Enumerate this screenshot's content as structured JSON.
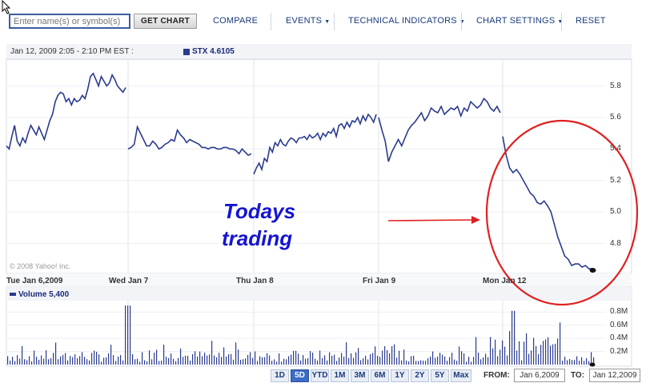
{
  "toolbar": {
    "search_placeholder": "Enter name(s) or symbol(s)",
    "get_chart": "GET CHART",
    "compare": "COMPARE",
    "events": "EVENTS",
    "technical_indicators": "TECHNICAL INDICATORS",
    "chart_settings": "CHART SETTINGS",
    "reset": "RESET"
  },
  "info": {
    "date_range": "Jan 12, 2009 2:05 - 2:10 PM EST :",
    "legend": "STX  4.6105"
  },
  "copyright": "© 2008 Yahoo! Inc.",
  "volume_legend": "Volume  5,400",
  "annotation": {
    "line1": "Todays",
    "line2": "trading"
  },
  "ranges": [
    "1D",
    "5D",
    "YTD",
    "1M",
    "3M",
    "6M",
    "1Y",
    "2Y",
    "5Y",
    "Max"
  ],
  "active_range": "5D",
  "dates": {
    "from_label": "FROM:",
    "from": "Jan 6,2009",
    "to_label": "TO:",
    "to": "Jan 12,2009"
  },
  "colors": {
    "line": "#2b3a8f",
    "annotation": "#1515d0",
    "circle": "#e02020",
    "arrow": "#e02020"
  },
  "chart_data": [
    {
      "type": "line",
      "ytick_labels": [
        "5.8",
        "5.6",
        "5.4",
        "5.2",
        "5.0",
        "4.8"
      ],
      "xtick_labels": [
        "Tue Jan 6,2009",
        "Wed Jan 7",
        "Thu Jan 8",
        "Fri Jan 9",
        "Mon Jan 12"
      ],
      "ylim": [
        4.62,
        5.96
      ],
      "series": [
        {
          "name": "STX",
          "segments": [
            [
              5.42,
              5.4,
              5.48,
              5.55,
              5.45,
              5.42,
              5.47,
              5.44,
              5.5,
              5.55,
              5.52,
              5.49,
              5.54,
              5.5,
              5.46,
              5.52,
              5.58,
              5.62,
              5.7,
              5.74,
              5.76,
              5.75,
              5.7,
              5.72,
              5.68,
              5.72,
              5.7,
              5.71,
              5.74,
              5.72,
              5.78,
              5.86,
              5.88,
              5.84,
              5.8,
              5.86,
              5.83,
              5.8,
              5.82,
              5.87,
              5.84,
              5.8,
              5.78,
              5.76,
              5.79
            ],
            [
              5.4,
              5.41,
              5.43,
              5.54,
              5.5,
              5.46,
              5.42,
              5.42,
              5.45,
              5.43,
              5.4,
              5.41,
              5.43,
              5.44,
              5.46,
              5.45,
              5.52,
              5.49,
              5.47,
              5.44,
              5.46,
              5.45,
              5.44,
              5.43,
              5.41,
              5.41,
              5.4,
              5.41,
              5.41,
              5.4,
              5.4,
              5.41,
              5.41,
              5.4,
              5.4,
              5.39,
              5.37,
              5.4,
              5.38,
              5.36,
              5.37
            ],
            [
              5.24,
              5.28,
              5.31,
              5.27,
              5.34,
              5.32,
              5.41,
              5.38,
              5.44,
              5.42,
              5.46,
              5.43,
              5.42,
              5.45,
              5.47,
              5.46,
              5.44,
              5.47,
              5.47,
              5.48,
              5.46,
              5.49,
              5.47,
              5.48,
              5.5,
              5.46,
              5.5,
              5.48,
              5.51,
              5.5,
              5.53,
              5.48,
              5.55,
              5.56,
              5.53,
              5.57,
              5.54,
              5.58,
              5.57,
              5.6,
              5.56,
              5.61,
              5.58,
              5.62,
              5.6,
              5.57,
              5.62
            ],
            [
              5.6,
              5.52,
              5.45,
              5.32,
              5.38,
              5.42,
              5.46,
              5.42,
              5.47,
              5.52,
              5.55,
              5.57,
              5.6,
              5.63,
              5.58,
              5.61,
              5.66,
              5.64,
              5.63,
              5.67,
              5.62,
              5.64,
              5.66,
              5.65,
              5.67,
              5.61,
              5.66,
              5.64,
              5.7,
              5.68,
              5.66,
              5.68,
              5.72,
              5.7,
              5.66,
              5.64,
              5.67,
              5.63
            ],
            [
              5.48,
              5.36,
              5.28,
              5.25,
              5.27,
              5.24,
              5.2,
              5.16,
              5.12,
              5.1,
              5.06,
              5.05,
              5.07,
              5.04,
              5.0,
              4.92,
              4.84,
              4.78,
              4.72,
              4.7,
              4.66,
              4.67,
              4.67,
              4.65,
              4.66,
              4.64,
              4.64
            ]
          ]
        }
      ]
    },
    {
      "type": "bar",
      "series_name": "Volume",
      "ytick_labels": [
        "0.8M",
        "0.6M",
        "0.4M",
        "0.2M"
      ],
      "ylim": [
        0,
        0.95
      ]
    }
  ]
}
